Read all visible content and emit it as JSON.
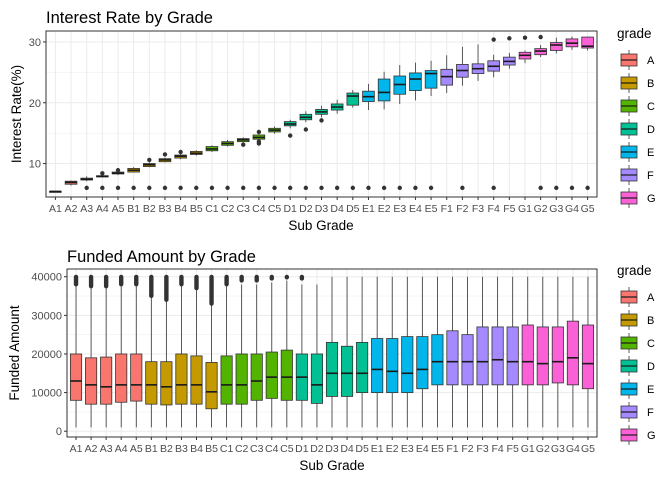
{
  "chart_data": [
    {
      "type": "boxplot",
      "title": "Interest Rate by Grade",
      "xlabel": "Sub Grade",
      "ylabel": "Interest Rate(%)",
      "ylim": [
        4.5,
        31.8
      ],
      "yticks": [
        10,
        20,
        30
      ],
      "grid": true,
      "legend_title": "grade",
      "legend_position": "right",
      "categories": [
        "A1",
        "A2",
        "A3",
        "A4",
        "A5",
        "B1",
        "B2",
        "B3",
        "B4",
        "B5",
        "C1",
        "C2",
        "C3",
        "C4",
        "C5",
        "D1",
        "D2",
        "D3",
        "D4",
        "D5",
        "E1",
        "E2",
        "E3",
        "E4",
        "E5",
        "F1",
        "F2",
        "F3",
        "F4",
        "F5",
        "G1",
        "G2",
        "G3",
        "G4",
        "G5"
      ],
      "boxes": [
        {
          "q1": 5.42,
          "median": 5.42,
          "q3": 5.42,
          "whislo": 5.42,
          "whishi": 5.42,
          "outliers": []
        },
        {
          "q1": 6.6,
          "median": 6.9,
          "q3": 7.1,
          "whislo": 6.4,
          "whishi": 7.2,
          "outliers": []
        },
        {
          "q1": 7.3,
          "median": 7.4,
          "q3": 7.6,
          "whislo": 7.1,
          "whishi": 7.9,
          "outliers": [
            6.0
          ]
        },
        {
          "q1": 7.8,
          "median": 7.9,
          "q3": 8.0,
          "whislo": 7.7,
          "whishi": 8.1,
          "outliers": [
            6.0,
            8.4
          ]
        },
        {
          "q1": 8.3,
          "median": 8.4,
          "q3": 8.6,
          "whislo": 8.1,
          "whishi": 8.8,
          "outliers": [
            6.0,
            8.9
          ]
        },
        {
          "q1": 8.6,
          "median": 8.9,
          "q3": 9.2,
          "whislo": 8.6,
          "whishi": 9.4,
          "outliers": [
            6.0
          ]
        },
        {
          "q1": 9.5,
          "median": 9.8,
          "q3": 10.0,
          "whislo": 9.4,
          "whishi": 10.2,
          "outliers": [
            6.0,
            10.6
          ]
        },
        {
          "q1": 10.3,
          "median": 10.6,
          "q3": 10.8,
          "whislo": 10.2,
          "whishi": 11.0,
          "outliers": [
            6.0,
            11.5
          ]
        },
        {
          "q1": 10.9,
          "median": 11.2,
          "q3": 11.4,
          "whislo": 10.7,
          "whishi": 11.6,
          "outliers": [
            6.0,
            11.9
          ]
        },
        {
          "q1": 11.5,
          "median": 11.7,
          "q3": 12.0,
          "whislo": 11.3,
          "whishi": 12.2,
          "outliers": [
            6.0
          ]
        },
        {
          "q1": 12.1,
          "median": 12.4,
          "q3": 12.8,
          "whislo": 11.9,
          "whishi": 13.0,
          "outliers": [
            6.0
          ]
        },
        {
          "q1": 13.0,
          "median": 13.3,
          "q3": 13.6,
          "whislo": 12.8,
          "whishi": 13.9,
          "outliers": [
            6.0
          ]
        },
        {
          "q1": 13.6,
          "median": 13.9,
          "q3": 14.1,
          "whislo": 13.4,
          "whishi": 14.3,
          "outliers": [
            6.0,
            13.1
          ]
        },
        {
          "q1": 14.0,
          "median": 14.3,
          "q3": 14.7,
          "whislo": 13.7,
          "whishi": 14.9,
          "outliers": [
            6.0,
            13.3,
            13.6,
            15.2
          ]
        },
        {
          "q1": 15.2,
          "median": 15.5,
          "q3": 15.8,
          "whislo": 14.9,
          "whishi": 16.1,
          "outliers": [
            6.0
          ]
        },
        {
          "q1": 16.2,
          "median": 16.5,
          "q3": 16.9,
          "whislo": 15.8,
          "whishi": 17.2,
          "outliers": [
            6.0,
            14.6
          ]
        },
        {
          "q1": 17.2,
          "median": 17.6,
          "q3": 18.1,
          "whislo": 16.8,
          "whishi": 18.6,
          "outliers": [
            6.0,
            15.6
          ]
        },
        {
          "q1": 18.1,
          "median": 18.5,
          "q3": 18.9,
          "whislo": 17.6,
          "whishi": 19.5,
          "outliers": [
            6.0,
            17.1
          ]
        },
        {
          "q1": 18.8,
          "median": 19.3,
          "q3": 19.8,
          "whislo": 18.2,
          "whishi": 20.5,
          "outliers": [
            6.0
          ]
        },
        {
          "q1": 19.6,
          "median": 21.1,
          "q3": 21.6,
          "whislo": 19.2,
          "whishi": 22.1,
          "outliers": [
            6.0
          ]
        },
        {
          "q1": 20.2,
          "median": 21.0,
          "q3": 21.9,
          "whislo": 18.8,
          "whishi": 23.1,
          "outliers": [
            6.0
          ]
        },
        {
          "q1": 20.3,
          "median": 21.7,
          "q3": 23.9,
          "whislo": 18.9,
          "whishi": 25.1,
          "outliers": [
            6.0
          ]
        },
        {
          "q1": 21.4,
          "median": 23.0,
          "q3": 24.4,
          "whislo": 19.8,
          "whishi": 26.2,
          "outliers": [
            6.0
          ]
        },
        {
          "q1": 22.0,
          "median": 23.9,
          "q3": 24.9,
          "whislo": 20.4,
          "whishi": 26.6,
          "outliers": [
            6.0
          ]
        },
        {
          "q1": 22.4,
          "median": 24.8,
          "q3": 25.3,
          "whislo": 21.1,
          "whishi": 26.9,
          "outliers": [
            6.0
          ]
        },
        {
          "q1": 22.9,
          "median": 24.3,
          "q3": 25.5,
          "whislo": 21.6,
          "whishi": 27.8,
          "outliers": []
        },
        {
          "q1": 24.2,
          "median": 25.3,
          "q3": 26.3,
          "whislo": 22.8,
          "whishi": 29.2,
          "outliers": [
            6.0
          ]
        },
        {
          "q1": 24.8,
          "median": 25.6,
          "q3": 26.4,
          "whislo": 23.6,
          "whishi": 29.6,
          "outliers": []
        },
        {
          "q1": 25.2,
          "median": 26.0,
          "q3": 26.9,
          "whislo": 24.2,
          "whishi": 27.9,
          "outliers": [
            6.0,
            30.4
          ]
        },
        {
          "q1": 26.2,
          "median": 26.8,
          "q3": 27.5,
          "whislo": 25.6,
          "whishi": 28.2,
          "outliers": [
            30.6
          ]
        },
        {
          "q1": 27.2,
          "median": 27.8,
          "q3": 28.3,
          "whislo": 26.5,
          "whishi": 28.6,
          "outliers": [
            30.7
          ]
        },
        {
          "q1": 27.9,
          "median": 28.5,
          "q3": 28.9,
          "whislo": 27.5,
          "whishi": 29.5,
          "outliers": [
            6.0,
            30.8
          ]
        },
        {
          "q1": 28.6,
          "median": 29.5,
          "q3": 29.9,
          "whislo": 28.1,
          "whishi": 30.7,
          "outliers": [
            6.0
          ]
        },
        {
          "q1": 29.2,
          "median": 29.8,
          "q3": 30.5,
          "whislo": 28.7,
          "whishi": 30.9,
          "outliers": [
            6.0
          ]
        },
        {
          "q1": 29.0,
          "median": 29.3,
          "q3": 30.8,
          "whislo": 28.6,
          "whishi": 30.9,
          "outliers": [
            6.0
          ]
        }
      ]
    },
    {
      "type": "boxplot",
      "title": "Funded Amount by Grade",
      "xlabel": "Sub Grade",
      "ylabel": "Funded Amount",
      "ylim": [
        -1500,
        42000
      ],
      "yticks": [
        0,
        10000,
        20000,
        30000,
        40000
      ],
      "grid": true,
      "legend_title": "grade",
      "legend_position": "right",
      "categories": [
        "A1",
        "A2",
        "A3",
        "A4",
        "A5",
        "B1",
        "B2",
        "B3",
        "B4",
        "B5",
        "C1",
        "C2",
        "C3",
        "C4",
        "C5",
        "D1",
        "D2",
        "D3",
        "D4",
        "D5",
        "E1",
        "E2",
        "E3",
        "E4",
        "E5",
        "F1",
        "F2",
        "F3",
        "F4",
        "F5",
        "G1",
        "G2",
        "G3",
        "G4",
        "G5"
      ],
      "boxes": [
        {
          "q1": 8000,
          "median": 13000,
          "q3": 20000,
          "whislo": 1000,
          "whishi": 38000,
          "outlier_range": [
            38000,
            40000
          ]
        },
        {
          "q1": 7000,
          "median": 12000,
          "q3": 19000,
          "whislo": 1000,
          "whishi": 37500,
          "outlier_range": [
            37500,
            40000
          ]
        },
        {
          "q1": 7000,
          "median": 11500,
          "q3": 19200,
          "whislo": 1000,
          "whishi": 37500,
          "outlier_range": [
            37500,
            40000
          ]
        },
        {
          "q1": 7500,
          "median": 12000,
          "q3": 20000,
          "whislo": 1000,
          "whishi": 38000,
          "outlier_range": [
            38000,
            40000
          ]
        },
        {
          "q1": 7800,
          "median": 12000,
          "q3": 20000,
          "whislo": 1000,
          "whishi": 38000,
          "outlier_range": [
            38000,
            40000
          ]
        },
        {
          "q1": 7000,
          "median": 12000,
          "q3": 18000,
          "whislo": 1000,
          "whishi": 35000,
          "outlier_range": [
            35000,
            40000
          ]
        },
        {
          "q1": 6800,
          "median": 11500,
          "q3": 18000,
          "whislo": 1000,
          "whishi": 34000,
          "outlier_range": [
            34000,
            40000
          ]
        },
        {
          "q1": 7000,
          "median": 12000,
          "q3": 20000,
          "whislo": 1000,
          "whishi": 38000,
          "outlier_range": [
            38000,
            40000
          ]
        },
        {
          "q1": 7000,
          "median": 12000,
          "q3": 19500,
          "whislo": 1000,
          "whishi": 37000,
          "outlier_range": [
            37000,
            40000
          ]
        },
        {
          "q1": 5800,
          "median": 10200,
          "q3": 17800,
          "whislo": 1000,
          "whishi": 33000,
          "outlier_range": [
            33000,
            40000
          ]
        },
        {
          "q1": 7000,
          "median": 12000,
          "q3": 19500,
          "whislo": 1000,
          "whishi": 37500,
          "outlier_range": [
            38000,
            40000
          ]
        },
        {
          "q1": 7000,
          "median": 12000,
          "q3": 20000,
          "whislo": 1000,
          "whishi": 38000,
          "outlier_range": [
            39000,
            40000
          ]
        },
        {
          "q1": 8000,
          "median": 13000,
          "q3": 20000,
          "whislo": 1000,
          "whishi": 38000,
          "outlier_range": [
            39000,
            40000
          ]
        },
        {
          "q1": 8500,
          "median": 14000,
          "q3": 20500,
          "whislo": 1000,
          "whishi": 38500,
          "outlier_range": [
            39500,
            40000
          ]
        },
        {
          "q1": 8000,
          "median": 14000,
          "q3": 21000,
          "whislo": 1000,
          "whishi": 39000,
          "outlier_range": [
            39800,
            40000
          ]
        },
        {
          "q1": 8000,
          "median": 14000,
          "q3": 20000,
          "whislo": 1000,
          "whishi": 38000,
          "outlier_range": [
            39500,
            40000
          ]
        },
        {
          "q1": 7200,
          "median": 12000,
          "q3": 20000,
          "whislo": 1000,
          "whishi": 38000,
          "outlier_range": []
        },
        {
          "q1": 9000,
          "median": 15000,
          "q3": 23000,
          "whislo": 1000,
          "whishi": 40000,
          "outlier_range": []
        },
        {
          "q1": 9000,
          "median": 15000,
          "q3": 22000,
          "whislo": 1000,
          "whishi": 40000,
          "outlier_range": []
        },
        {
          "q1": 10000,
          "median": 15000,
          "q3": 23000,
          "whislo": 1000,
          "whishi": 40000,
          "outlier_range": []
        },
        {
          "q1": 10000,
          "median": 16000,
          "q3": 24000,
          "whislo": 1000,
          "whishi": 40000,
          "outlier_range": []
        },
        {
          "q1": 10000,
          "median": 15500,
          "q3": 24000,
          "whislo": 1000,
          "whishi": 40000,
          "outlier_range": []
        },
        {
          "q1": 10000,
          "median": 15000,
          "q3": 24500,
          "whislo": 1000,
          "whishi": 40000,
          "outlier_range": []
        },
        {
          "q1": 11000,
          "median": 16000,
          "q3": 24500,
          "whislo": 1000,
          "whishi": 40000,
          "outlier_range": []
        },
        {
          "q1": 12000,
          "median": 18000,
          "q3": 25000,
          "whislo": 1000,
          "whishi": 40000,
          "outlier_range": []
        },
        {
          "q1": 12000,
          "median": 18000,
          "q3": 26000,
          "whislo": 1000,
          "whishi": 40000,
          "outlier_range": []
        },
        {
          "q1": 12000,
          "median": 18000,
          "q3": 25000,
          "whislo": 1000,
          "whishi": 40000,
          "outlier_range": []
        },
        {
          "q1": 12000,
          "median": 18000,
          "q3": 27000,
          "whislo": 1000,
          "whishi": 40000,
          "outlier_range": []
        },
        {
          "q1": 12000,
          "median": 18500,
          "q3": 27000,
          "whislo": 1000,
          "whishi": 40000,
          "outlier_range": []
        },
        {
          "q1": 12000,
          "median": 18000,
          "q3": 27000,
          "whislo": 1000,
          "whishi": 40000,
          "outlier_range": []
        },
        {
          "q1": 12000,
          "median": 18000,
          "q3": 27500,
          "whislo": 1000,
          "whishi": 40000,
          "outlier_range": []
        },
        {
          "q1": 12000,
          "median": 17500,
          "q3": 27000,
          "whislo": 1000,
          "whishi": 40000,
          "outlier_range": []
        },
        {
          "q1": 12500,
          "median": 18000,
          "q3": 27000,
          "whislo": 1000,
          "whishi": 40000,
          "outlier_range": []
        },
        {
          "q1": 12000,
          "median": 19000,
          "q3": 28500,
          "whislo": 1000,
          "whishi": 40000,
          "outlier_range": []
        },
        {
          "q1": 11000,
          "median": 17500,
          "q3": 27500,
          "whislo": 1000,
          "whishi": 40000,
          "outlier_range": []
        }
      ]
    }
  ],
  "legend": {
    "title": "grade",
    "items": [
      {
        "label": "A",
        "color": "#F8766D"
      },
      {
        "label": "B",
        "color": "#C49A00"
      },
      {
        "label": "C",
        "color": "#53B400"
      },
      {
        "label": "D",
        "color": "#00C094"
      },
      {
        "label": "E",
        "color": "#00B6EB"
      },
      {
        "label": "F",
        "color": "#A58AFF"
      },
      {
        "label": "G",
        "color": "#FB61D7"
      }
    ]
  }
}
